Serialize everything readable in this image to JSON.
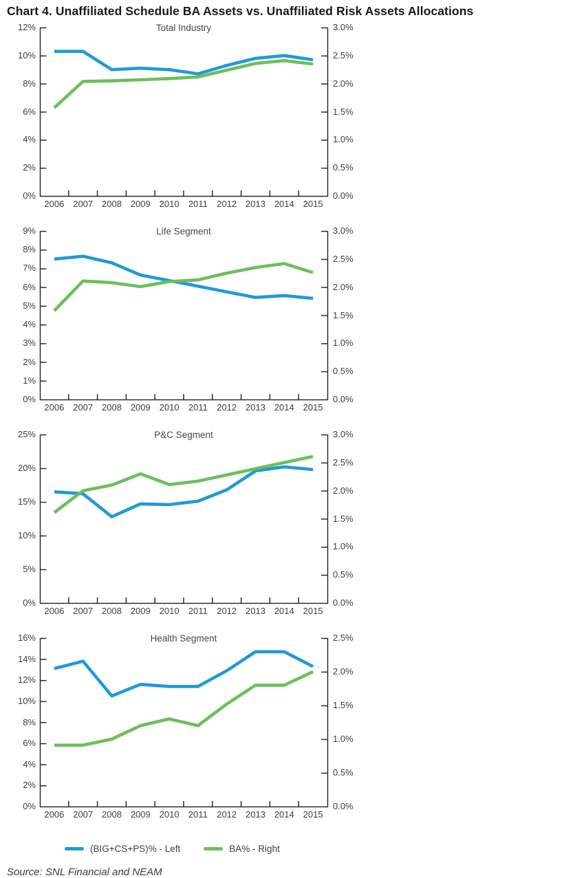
{
  "page_title": "Chart 4. Unaffiliated Schedule BA Assets vs. Unaffiliated Risk Assets Allocations",
  "source": "Source: SNL Financial and NEAM",
  "colors": {
    "blue": "#1E9BD7",
    "green": "#6CBF5A",
    "axis": "#2B2B2B",
    "label_text": "#3D3D3D"
  },
  "legend": {
    "items": [
      {
        "label": "(BIG+CS+PS)% - Left",
        "color_key": "blue"
      },
      {
        "label": "BA% - Right",
        "color_key": "green"
      }
    ]
  },
  "chart_data": [
    {
      "type": "line",
      "title": "Total Industry",
      "categories": [
        "2006",
        "2007",
        "2008",
        "2009",
        "2010",
        "2011",
        "2012",
        "2013",
        "2014",
        "2015"
      ],
      "left_axis": {
        "ticks": [
          "12%",
          "10%",
          "8%",
          "6%",
          "4%",
          "2%",
          "0%"
        ],
        "min": 0,
        "max": 12
      },
      "right_axis": {
        "ticks": [
          "3.0%",
          "2.5%",
          "2.0%",
          "1.5%",
          "1.0%",
          "0.5%",
          "0.0%"
        ],
        "min": 0,
        "max": 3.0
      },
      "grid": false,
      "series": [
        {
          "name": "(BIG+CS+PS)% - Left",
          "axis": "left",
          "color_key": "blue",
          "values": [
            10.3,
            10.3,
            9.0,
            9.1,
            9.0,
            8.7,
            9.3,
            9.8,
            10.0,
            9.7
          ]
        },
        {
          "name": "BA% - Right",
          "axis": "right",
          "color_key": "green",
          "values": [
            1.57,
            2.04,
            2.05,
            2.07,
            2.09,
            2.12,
            2.24,
            2.36,
            2.41,
            2.35
          ]
        }
      ]
    },
    {
      "type": "line",
      "title": "Life Segment",
      "categories": [
        "2006",
        "2007",
        "2008",
        "2009",
        "2010",
        "2011",
        "2012",
        "2013",
        "2014",
        "2015"
      ],
      "left_axis": {
        "ticks": [
          "9%",
          "8%",
          "7%",
          "6%",
          "5%",
          "4%",
          "3%",
          "2%",
          "1%",
          "0%"
        ],
        "min": 0,
        "max": 9
      },
      "right_axis": {
        "ticks": [
          "3.0%",
          "2.5%",
          "2.0%",
          "1.5%",
          "1.0%",
          "0.5%",
          "0.0%"
        ],
        "min": 0,
        "max": 3.0
      },
      "grid": false,
      "series": [
        {
          "name": "(BIG+CS+PS)% - Left",
          "axis": "left",
          "color_key": "blue",
          "values": [
            7.5,
            7.65,
            7.3,
            6.65,
            6.35,
            6.05,
            5.75,
            5.45,
            5.55,
            5.4
          ]
        },
        {
          "name": "BA% - Right",
          "axis": "right",
          "color_key": "green",
          "values": [
            1.58,
            2.11,
            2.08,
            2.01,
            2.1,
            2.13,
            2.25,
            2.35,
            2.42,
            2.26
          ]
        }
      ]
    },
    {
      "type": "line",
      "title": "P&C Segment",
      "categories": [
        "2006",
        "2007",
        "2008",
        "2009",
        "2010",
        "2011",
        "2012",
        "2013",
        "2014",
        "2015"
      ],
      "left_axis": {
        "ticks": [
          "25%",
          "20%",
          "15%",
          "10%",
          "5%",
          "0%"
        ],
        "min": 0,
        "max": 25
      },
      "right_axis": {
        "ticks": [
          "3.0%",
          "2.5%",
          "2.0%",
          "1.5%",
          "1.0%",
          "0.5%",
          "0.0%"
        ],
        "min": 0,
        "max": 3.0
      },
      "grid": false,
      "series": [
        {
          "name": "(BIG+CS+PS)% - Left",
          "axis": "left",
          "color_key": "blue",
          "values": [
            16.5,
            16.2,
            12.8,
            14.7,
            14.6,
            15.1,
            16.8,
            19.6,
            20.2,
            19.8
          ]
        },
        {
          "name": "BA% - Right",
          "axis": "right",
          "color_key": "green",
          "values": [
            1.61,
            2.0,
            2.1,
            2.3,
            2.11,
            2.17,
            2.28,
            2.39,
            2.5,
            2.61
          ]
        }
      ]
    },
    {
      "type": "line",
      "title": "Health Segment",
      "categories": [
        "2006",
        "2007",
        "2008",
        "2009",
        "2010",
        "2011",
        "2012",
        "2013",
        "2014",
        "2015"
      ],
      "left_axis": {
        "ticks": [
          "16%",
          "14%",
          "12%",
          "10%",
          "8%",
          "6%",
          "4%",
          "2%",
          "0%"
        ],
        "min": 0,
        "max": 16
      },
      "right_axis": {
        "ticks": [
          "2.5%",
          "2.0%",
          "1.5%",
          "1.0%",
          "0.5%",
          "0.0%"
        ],
        "min": 0,
        "max": 2.5
      },
      "grid": false,
      "series": [
        {
          "name": "(BIG+CS+PS)% - Left",
          "axis": "left",
          "color_key": "blue",
          "values": [
            13.1,
            13.8,
            10.5,
            11.6,
            11.4,
            11.4,
            12.9,
            14.7,
            14.7,
            13.3
          ]
        },
        {
          "name": "BA% - Right",
          "axis": "right",
          "color_key": "green",
          "values": [
            0.91,
            0.91,
            1.0,
            1.2,
            1.3,
            1.2,
            1.52,
            1.8,
            1.8,
            2.0
          ]
        }
      ]
    }
  ]
}
